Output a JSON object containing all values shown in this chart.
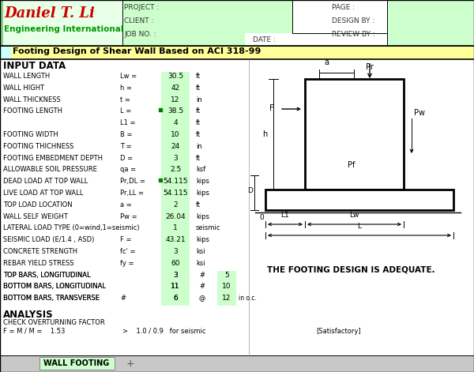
{
  "title": "Footing Design of Shear Wall Based on ACI 318-99",
  "company_name": "Daniel T. Li",
  "company_sub": "Engineering International",
  "header_labels": [
    "PROJECT :",
    "CLIENT :",
    "JOB NO. :"
  ],
  "header_right": [
    "PAGE :",
    "DESIGN BY :",
    "REVIEW BY :"
  ],
  "date_label": "DATE :",
  "input_data_title": "INPUT DATA",
  "analysis_title": "ANALYSIS",
  "analysis_sub": "CHECK OVERTURNING FACTOR",
  "analysis_formula": "F = M / M =    1.53",
  "analysis_formula2": ">    1.0 / 0.9   for seismic",
  "analysis_result": "[Satisfactory]",
  "input_rows": [
    [
      "WALL LENGTH",
      "Lw =",
      "30.5",
      "ft",
      false,
      false
    ],
    [
      "WALL HIGHT",
      "h =",
      "42",
      "ft",
      false,
      false
    ],
    [
      "WALL THICKNESS",
      "t =",
      "12",
      "in",
      false,
      false
    ],
    [
      "FOOTING LENGTH",
      "L =",
      "38.5",
      "ft",
      true,
      false
    ],
    [
      "",
      "L1 =",
      "4",
      "ft",
      false,
      false
    ],
    [
      "FOOTING WIDTH",
      "B =",
      "10",
      "ft",
      false,
      false
    ],
    [
      "FOOTING THICHNESS",
      "T =",
      "24",
      "in",
      false,
      false
    ],
    [
      "FOOTING EMBEDMENT DEPTH",
      "D =",
      "3",
      "ft",
      false,
      false
    ],
    [
      "ALLOWABLE SOIL PRESSURE",
      "qa =",
      "2.5",
      "ksf",
      false,
      false
    ],
    [
      "DEAD LOAD AT TOP WALL",
      "Pr,DL =",
      "54.115",
      "kips",
      true,
      false
    ],
    [
      "LIVE LOAD AT TOP WALL",
      "Pr,LL =",
      "54.115",
      "kips",
      false,
      false
    ],
    [
      "TOP LOAD LOCATION",
      "a =",
      "2",
      "ft",
      false,
      false
    ],
    [
      "WALL SELF WEIGHT",
      "Pw =",
      "26.04",
      "kips",
      false,
      false
    ],
    [
      "LATERAL LOAD TYPE (0=wind,1=seismic)",
      "",
      "1",
      "seismic",
      false,
      false
    ],
    [
      "SEISMIC LOAD (E/1.4 , ASD)",
      "F =",
      "43.21",
      "kips",
      false,
      false
    ],
    [
      "CONCRETE STRENGTH",
      "fc' =",
      "3",
      "ksi",
      false,
      false
    ],
    [
      "REBAR YIELD STRESS",
      "fy =",
      "60",
      "ksi",
      false,
      false
    ],
    [
      "TOP BARS, LONGITUDINAL",
      "",
      "3",
      "",
      true,
      true
    ],
    [
      "BOTTOM BARS, LONGITUDINAL",
      "",
      "11",
      "",
      false,
      true
    ],
    [
      "BOTTOM BARS, TRANSVERSE",
      "#",
      "6",
      "",
      false,
      true
    ]
  ],
  "adequate_text": "THE FOOTING DESIGN IS ADEQUATE.",
  "tab_label": "WALL FOOTING",
  "bg_white": "#FFFFFF",
  "bg_green_light": "#CCFFCC",
  "bg_yellow": "#FFFFCC",
  "bg_cyan": "#CCFFFF",
  "color_red": "#CC0000",
  "color_green": "#009900",
  "header_bg": "#E8FFE8",
  "title_yellow": "#FFFF99"
}
